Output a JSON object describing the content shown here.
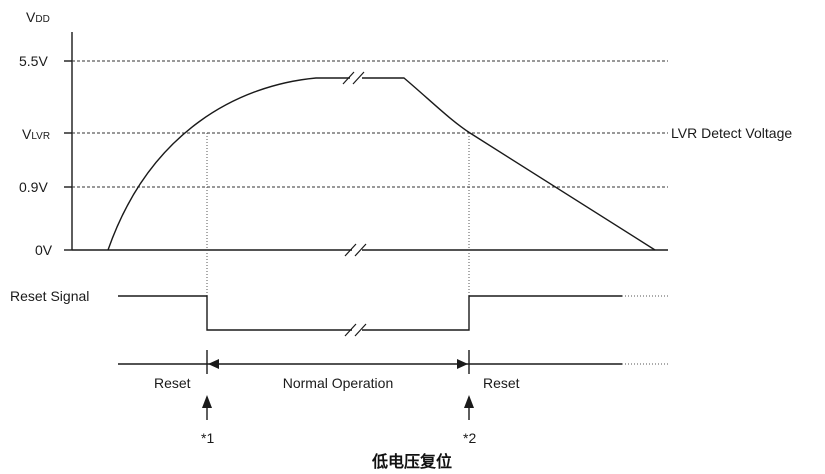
{
  "y_axis": {
    "label_main": "V",
    "label_sub": "DD",
    "levels": {
      "v55": "5.5V",
      "vlvr_main": "V",
      "vlvr_sub": "LVR",
      "v09": "0.9V",
      "v0": "0V"
    }
  },
  "lvr_line_label": "LVR Detect Voltage",
  "reset_signal_label": "Reset Signal",
  "phases": {
    "reset_left": "Reset",
    "normal": "Normal Operation",
    "reset_right": "Reset"
  },
  "markers": {
    "m1": "*1",
    "m2": "*2"
  },
  "caption": "低电压复位"
}
